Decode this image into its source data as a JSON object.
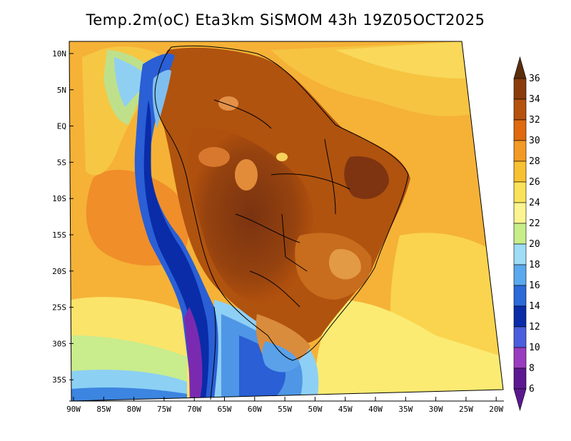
{
  "title": "Temp.2m(oC) Eta3km SiSMOM 43h 19Z05OCT2025",
  "map": {
    "lat_labels": [
      "10N",
      "5N",
      "EQ",
      "5S",
      "10S",
      "15S",
      "20S",
      "25S",
      "30S",
      "35S"
    ],
    "lon_labels": [
      "90W",
      "85W",
      "80W",
      "75W",
      "70W",
      "65W",
      "60W",
      "55W",
      "50W",
      "45W",
      "40W",
      "35W",
      "30W",
      "25W",
      "20W"
    ],
    "lat_range": [
      -38,
      12
    ],
    "lon_range": [
      -91,
      -20
    ]
  },
  "colorbar": {
    "ticks": [
      "36",
      "34",
      "32",
      "30",
      "28",
      "26",
      "24",
      "22",
      "20",
      "18",
      "16",
      "14",
      "12",
      "10",
      "8",
      "6"
    ],
    "colors": [
      "#5a2d0c",
      "#8a3c0d",
      "#b5520e",
      "#df6a10",
      "#f29a25",
      "#f7c133",
      "#fae35a",
      "#fbf491",
      "#c8ee8a",
      "#9fdcf7",
      "#5aa9ee",
      "#2b6ad8",
      "#0a2ca8",
      "#4a5fdc",
      "#9a3cc0",
      "#5c1890"
    ]
  }
}
